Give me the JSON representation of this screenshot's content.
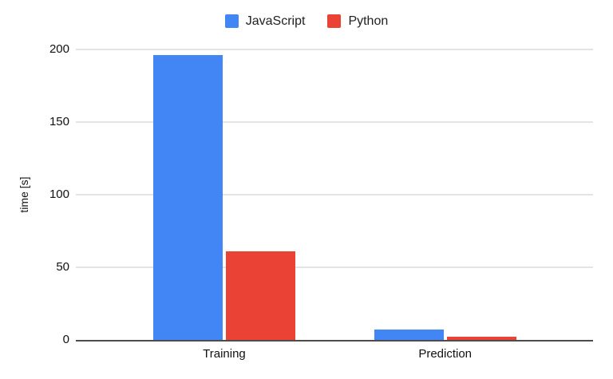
{
  "chart_data": {
    "type": "bar",
    "title": "",
    "categories": [
      "Training",
      "Prediction"
    ],
    "series": [
      {
        "name": "JavaScript",
        "color": "#4285F4",
        "values": [
          196,
          7
        ]
      },
      {
        "name": "Python",
        "color": "#EA4335",
        "values": [
          61,
          2
        ]
      }
    ],
    "xlabel": "",
    "ylabel": "time [s]",
    "ylim": [
      0,
      200
    ],
    "yticks": [
      0,
      50,
      100,
      150,
      200
    ],
    "grid": "horizontal",
    "legend_position": "top",
    "grid_color": "#e4e4e4",
    "axis_color": "#4c4c4c",
    "text_color": "#111111",
    "background_color": "#ffffff"
  }
}
